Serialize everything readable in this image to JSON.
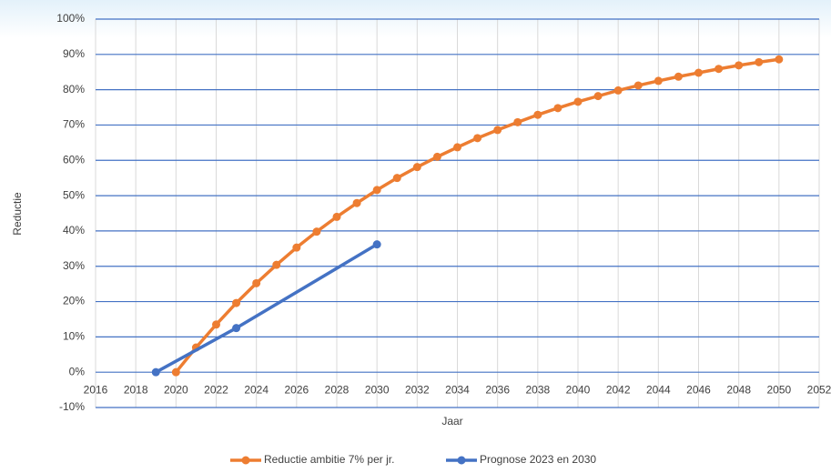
{
  "chart_data": {
    "type": "line",
    "y_label": "Reductie",
    "x_label": "Jaar",
    "xlim": [
      2016,
      2052
    ],
    "xticks": [
      2016,
      2018,
      2020,
      2022,
      2024,
      2026,
      2028,
      2030,
      2032,
      2034,
      2036,
      2038,
      2040,
      2042,
      2044,
      2046,
      2048,
      2050,
      2052
    ],
    "ylim": [
      -10,
      100
    ],
    "yticks": [
      {
        "value": -10,
        "label": "-10%"
      },
      {
        "value": 0,
        "label": "0%"
      },
      {
        "value": 10,
        "label": "10%"
      },
      {
        "value": 20,
        "label": "20%"
      },
      {
        "value": 30,
        "label": "30%"
      },
      {
        "value": 40,
        "label": "40%"
      },
      {
        "value": 50,
        "label": "50%"
      },
      {
        "value": 60,
        "label": "60%"
      },
      {
        "value": 70,
        "label": "70%"
      },
      {
        "value": 80,
        "label": "80%"
      },
      {
        "value": 90,
        "label": "90%"
      },
      {
        "value": 100,
        "label": "100%"
      }
    ],
    "grid": true,
    "legend": "bottom",
    "series": [
      {
        "name": "Reductie ambitie 7% per jr.",
        "color": "#ed7d31",
        "x": [
          2020,
          2021,
          2022,
          2023,
          2024,
          2025,
          2026,
          2027,
          2028,
          2029,
          2030,
          2031,
          2032,
          2033,
          2034,
          2035,
          2036,
          2037,
          2038,
          2039,
          2040,
          2041,
          2042,
          2043,
          2044,
          2045,
          2046,
          2047,
          2048,
          2049,
          2050
        ],
        "values": [
          0,
          7,
          13.5,
          19.6,
          25.2,
          30.4,
          35.3,
          39.8,
          44.0,
          47.9,
          51.6,
          55.0,
          58.1,
          61.0,
          63.7,
          66.3,
          68.6,
          70.8,
          72.9,
          74.8,
          76.6,
          78.2,
          79.8,
          81.2,
          82.5,
          83.7,
          84.8,
          85.9,
          86.9,
          87.8,
          88.6
        ]
      },
      {
        "name": "Prognose 2023 en 2030",
        "color": "#4472c4",
        "x": [
          2019,
          2023,
          2030
        ],
        "values": [
          0,
          12.5,
          36.2
        ]
      }
    ]
  }
}
